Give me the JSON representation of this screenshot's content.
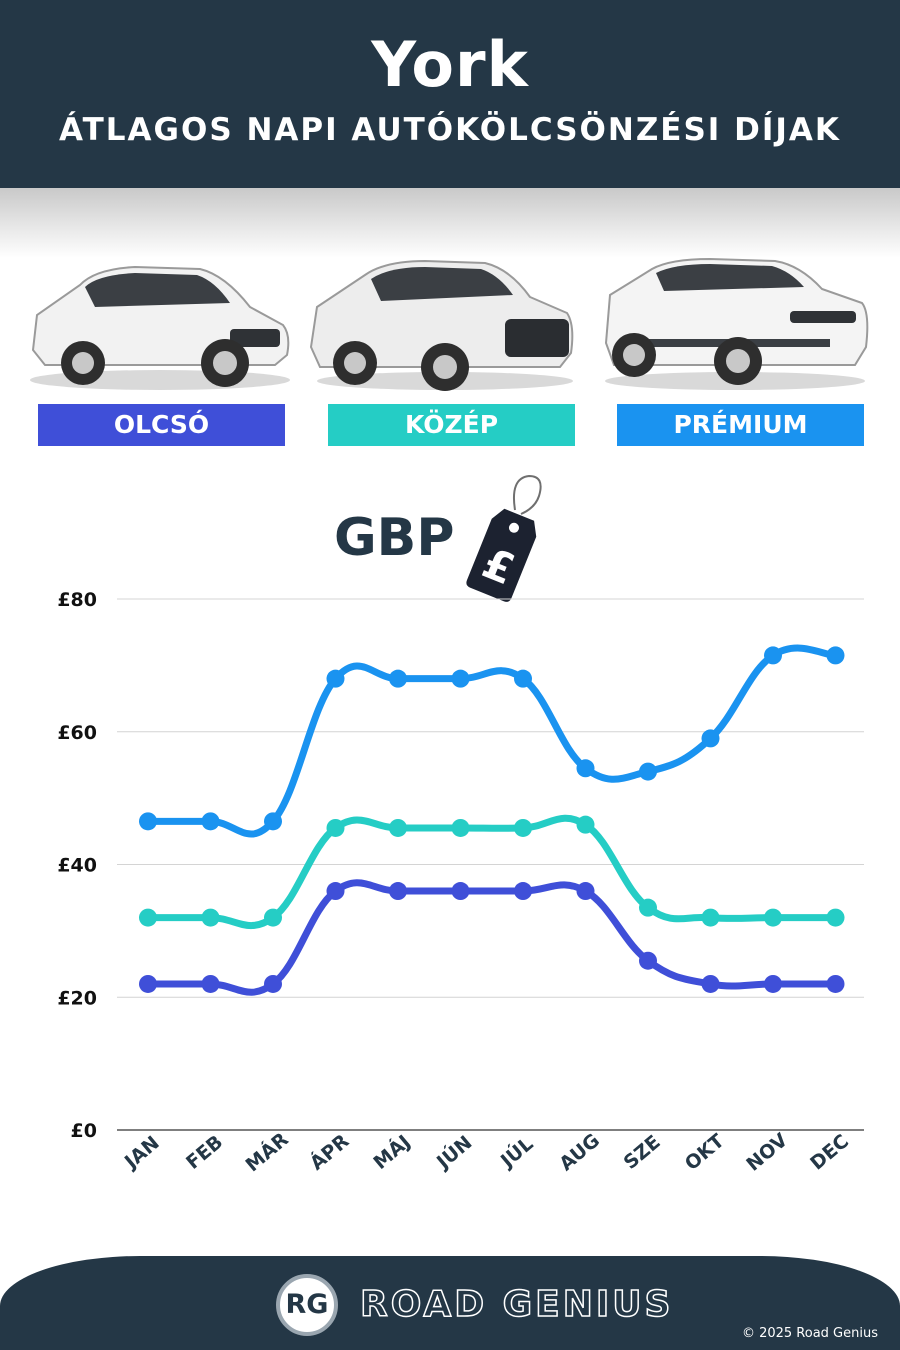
{
  "header": {
    "city": "York",
    "subtitle": "ÁTLAGOS NAPI AUTÓKÖLCSÖNZÉSI DÍJAK"
  },
  "tiers": [
    {
      "label": "OLCSÓ",
      "color": "#3f4fd8"
    },
    {
      "label": "KÖZÉP",
      "color": "#25cdc5"
    },
    {
      "label": "PRÉMIUM",
      "color": "#1a93f0"
    }
  ],
  "currency_label": "GBP",
  "currency_symbol": "£",
  "chart_data": {
    "type": "line",
    "categories": [
      "JAN",
      "FEB",
      "MÁR",
      "ÁPR",
      "MÁJ",
      "JÚN",
      "JÚL",
      "AUG",
      "SZE",
      "OKT",
      "NOV",
      "DEC"
    ],
    "series": [
      {
        "name": "OLCSÓ",
        "color": "#3f4fd8",
        "values": [
          22,
          22,
          22,
          36,
          36,
          36,
          36,
          36,
          25.5,
          22,
          22,
          22
        ]
      },
      {
        "name": "KÖZÉP",
        "color": "#25cdc5",
        "values": [
          32,
          32,
          32,
          45.5,
          45.5,
          45.5,
          45.5,
          46,
          33.5,
          32,
          32,
          32
        ]
      },
      {
        "name": "PRÉMIUM",
        "color": "#1a93f0",
        "values": [
          46.5,
          46.5,
          46.5,
          68,
          68,
          68,
          68,
          54.5,
          54,
          59,
          71.5,
          71.5
        ]
      }
    ],
    "ylim": [
      0,
      80
    ],
    "yticks": [
      0,
      20,
      40,
      60,
      80
    ],
    "ytick_labels": [
      "£0",
      "£20",
      "£40",
      "£60",
      "£80"
    ],
    "grid": true,
    "smooth": true
  },
  "footer": {
    "logo_text": "RG",
    "brand": "ROAD GENIUS",
    "copyright": "© 2025 Road Genius"
  }
}
